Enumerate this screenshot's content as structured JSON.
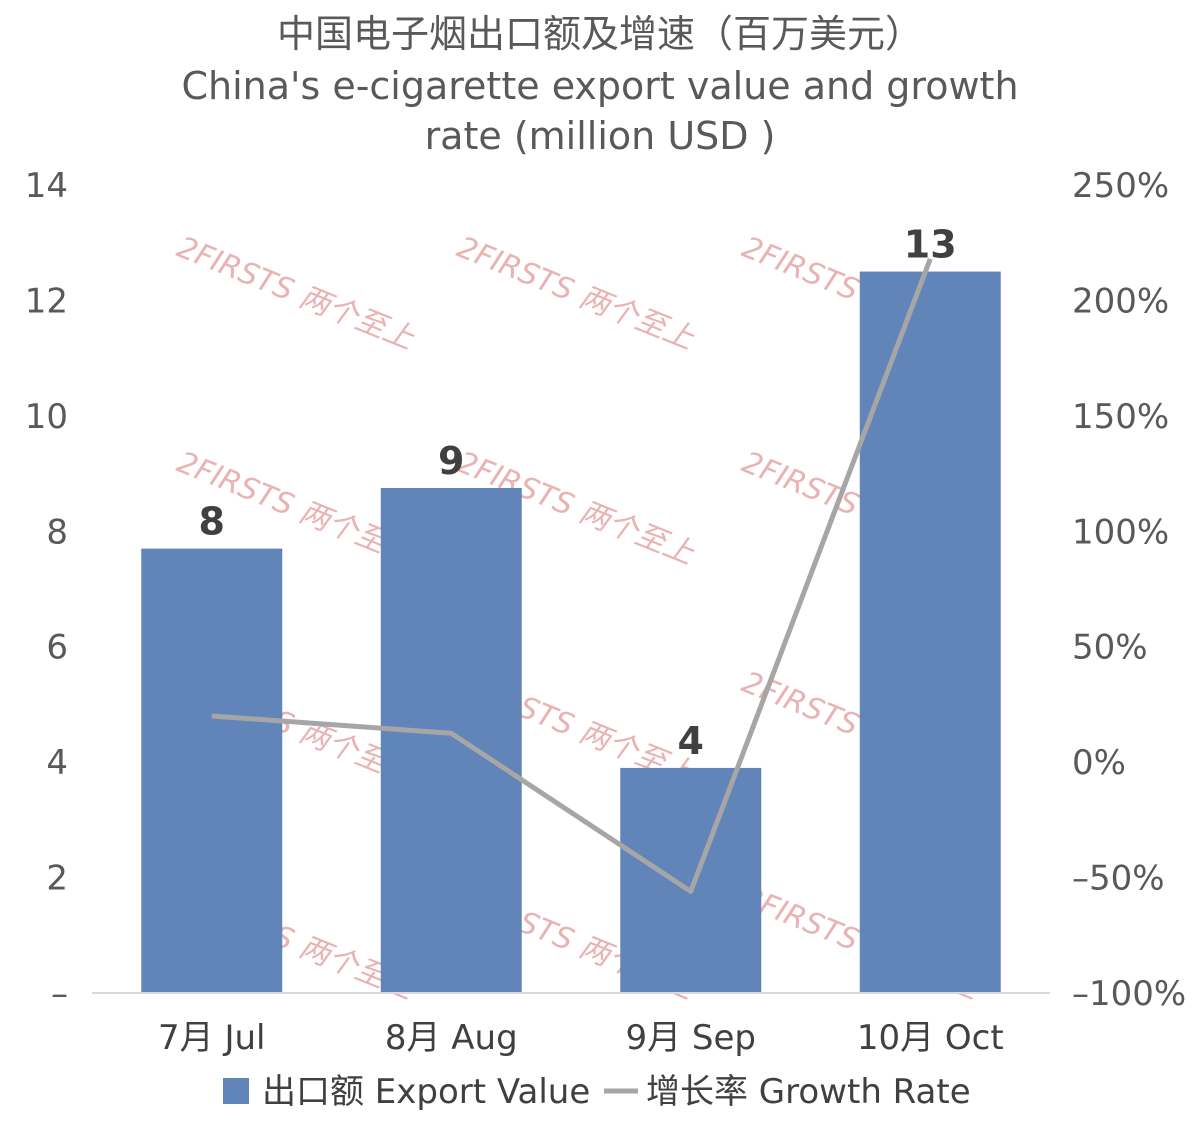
{
  "chart_data": {
    "type": "bar",
    "title": "中国电子烟出口额及增速（百万美元）",
    "subtitle_lines": [
      "China's e-cigarette export value and growth",
      "rate (million USD )"
    ],
    "categories": [
      "7月 Jul",
      "8月 Aug",
      "9月 Sep",
      "10月 Oct"
    ],
    "series": [
      {
        "name": "出口额 Export Value",
        "type": "bar",
        "axis": "left",
        "color": "#6185b8",
        "values": [
          7.7,
          8.75,
          3.9,
          12.5
        ],
        "data_labels": [
          "8",
          "9",
          "4",
          "13"
        ]
      },
      {
        "name": "增长率 Growth Rate",
        "type": "line",
        "axis": "right",
        "color": "#a6a6a6",
        "values": [
          20,
          12.5,
          -56,
          218
        ]
      }
    ],
    "left_axis": {
      "ylim": [
        0,
        14
      ],
      "ticks": [
        "–",
        "2",
        "4",
        "6",
        "8",
        "10",
        "12",
        "14"
      ]
    },
    "right_axis": {
      "ylim": [
        -100,
        250
      ],
      "ticks": [
        "–100%",
        "–50%",
        "0%",
        "50%",
        "100%",
        "150%",
        "200%",
        "250%"
      ]
    },
    "legend": "bottom",
    "grid": false
  },
  "watermark": {
    "text": "2FIRSTS 两个至上"
  }
}
